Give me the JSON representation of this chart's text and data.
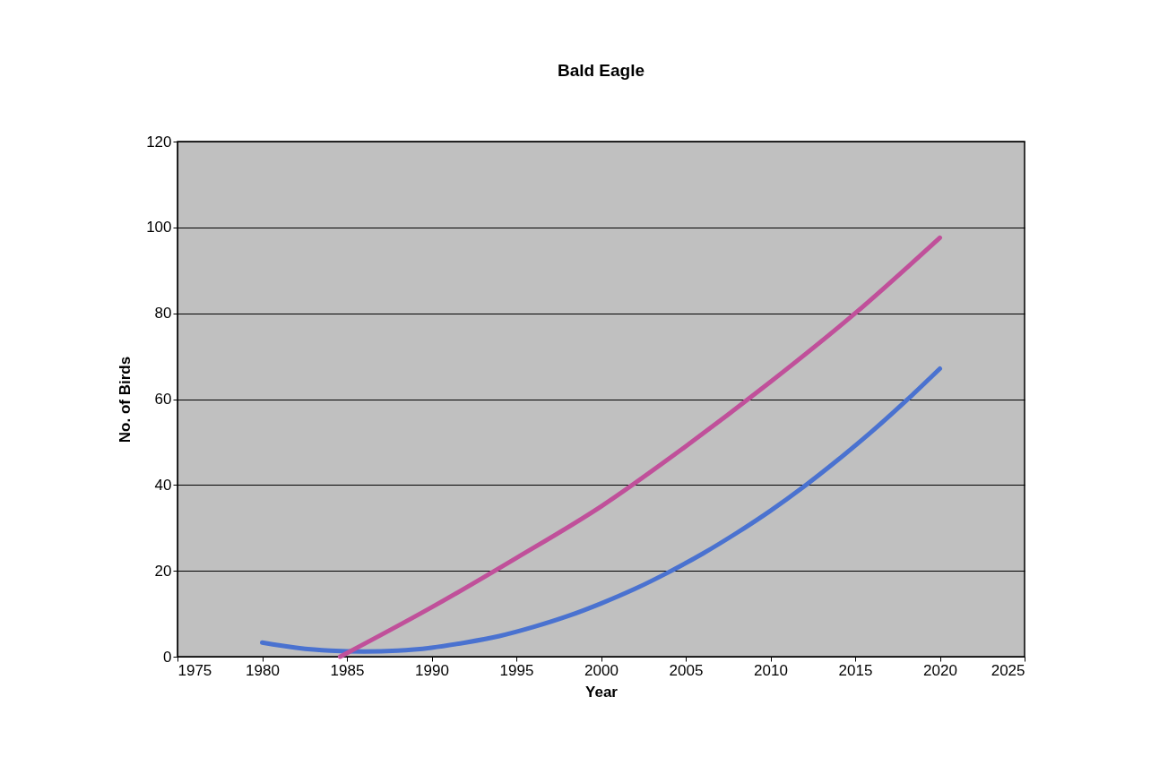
{
  "chart_data": {
    "type": "line",
    "title": "Bald Eagle",
    "xlabel": "Year",
    "ylabel": "No. of Birds",
    "xlim": [
      1975,
      2025
    ],
    "xticks": [
      1975,
      1980,
      1985,
      1990,
      1995,
      2000,
      2005,
      2010,
      2015,
      2020,
      2025
    ],
    "ylim": [
      0,
      120
    ],
    "yticks": [
      0,
      20,
      40,
      60,
      80,
      100,
      120
    ],
    "grid": "y",
    "legend": false,
    "marker": "none",
    "line_style": "solid",
    "series": [
      {
        "color": "#4a72d0",
        "x": [
          1980,
          1982,
          1984,
          1986,
          1988,
          1990,
          1992,
          1994,
          1996,
          1998,
          2000,
          2002,
          2004,
          2006,
          2008,
          2010,
          2012,
          2014,
          2016,
          2018,
          2020
        ],
        "values": [
          3.3,
          2.1,
          1.4,
          1.2,
          1.4,
          2.1,
          3.3,
          4.8,
          6.9,
          9.4,
          12.4,
          15.8,
          19.7,
          24.0,
          28.8,
          34.0,
          39.7,
          45.9,
          52.5,
          59.6,
          67.1
        ]
      },
      {
        "color": "#c0509a",
        "x": [
          1984.6,
          1990,
          1995,
          2000,
          2005,
          2010,
          2015,
          2020
        ],
        "values": [
          0,
          11.5,
          23,
          35,
          49,
          64,
          80,
          97.6
        ]
      }
    ]
  }
}
